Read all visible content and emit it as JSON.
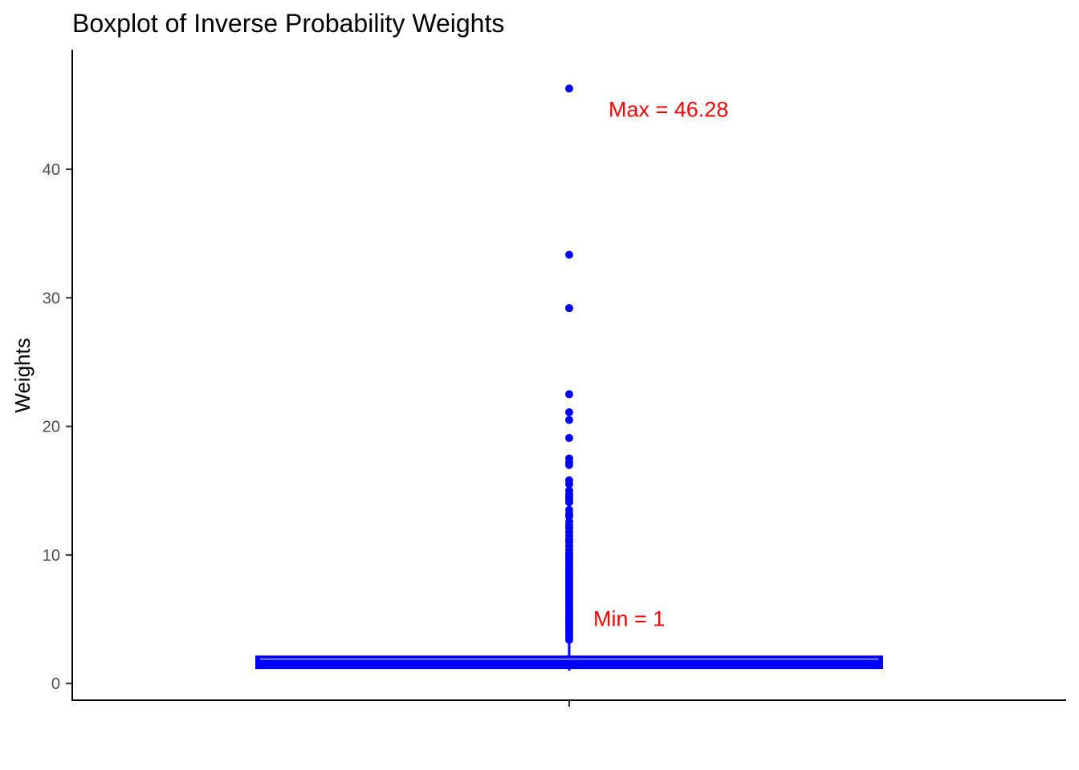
{
  "chart_data": {
    "type": "boxplot",
    "title": "Boxplot of Inverse Probability Weights",
    "xlabel": "",
    "ylabel": "Weights",
    "ylim": [
      -1.3,
      49.3
    ],
    "yticks": [
      0,
      10,
      20,
      30,
      40
    ],
    "grid": false,
    "legend": "none",
    "colors": {
      "box": "#0000ff",
      "median": "#8080ff",
      "outlier": "#0000ff",
      "annotation": "#ff0000",
      "axis": "#000000",
      "tick_label": "#4d4d4d"
    },
    "box": {
      "min": 1,
      "q1": 1.25,
      "median": 1.9,
      "q3": 2.05,
      "whisker_high": 3.2,
      "max": 46.28
    },
    "outliers": [
      46.28,
      33.35,
      29.2,
      22.5,
      21.1,
      20.5,
      19.1,
      17.5,
      17.2,
      17.0,
      15.8,
      15.5,
      15.0,
      14.7,
      14.5,
      14.3,
      14.1,
      13.5,
      13.2,
      13.0,
      12.6,
      12.3,
      12.1,
      11.8,
      11.5,
      11.2,
      11.0,
      10.7,
      10.4,
      10.2,
      10.0,
      9.8,
      9.6,
      9.4,
      9.2,
      9.0,
      8.8,
      8.6,
      8.4,
      8.2,
      8.0,
      7.8,
      7.6,
      7.4,
      7.2,
      7.0,
      6.8,
      6.6,
      6.4,
      6.2,
      6.0,
      5.8,
      5.6,
      5.4,
      5.2,
      5.0,
      4.8,
      4.6,
      4.4,
      4.2,
      4.0,
      3.8,
      3.6,
      3.4
    ],
    "annotations": [
      {
        "text": "Max = 46.28",
        "value": 44.7
      },
      {
        "text": "Min = 1",
        "value": 5.1
      }
    ]
  }
}
